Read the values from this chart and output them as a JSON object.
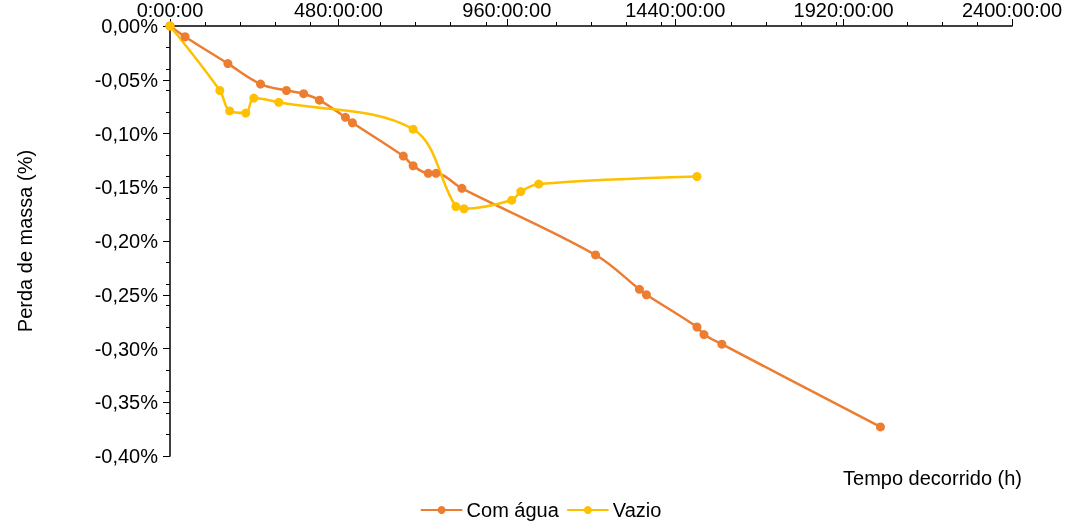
{
  "chart_data": {
    "type": "line",
    "xlabel": "Tempo decorrido (h)",
    "ylabel": "Perda de massa (%)",
    "xlim": [
      0,
      2400
    ],
    "xticks": [
      {
        "value": 0,
        "label": "0:00:00"
      },
      {
        "value": 480,
        "label": "480:00:00"
      },
      {
        "value": 960,
        "label": "960:00:00"
      },
      {
        "value": 1440,
        "label": "1440:00:00"
      },
      {
        "value": 1920,
        "label": "1920:00:00"
      },
      {
        "value": 2400,
        "label": "2400:00:00"
      }
    ],
    "ylim": [
      -0.4,
      0
    ],
    "yticks": [
      {
        "value": 0,
        "label": "0,00%"
      },
      {
        "value": -0.05,
        "label": "-0,05%"
      },
      {
        "value": -0.1,
        "label": "-0,10%"
      },
      {
        "value": -0.15,
        "label": "-0,15%"
      },
      {
        "value": -0.2,
        "label": "-0,20%"
      },
      {
        "value": -0.25,
        "label": "-0,25%"
      },
      {
        "value": -0.3,
        "label": "-0,30%"
      },
      {
        "value": -0.35,
        "label": "-0,35%"
      },
      {
        "value": -0.4,
        "label": "-0,40%"
      }
    ],
    "grid": false,
    "legend": "bottom",
    "marker": "circle",
    "line_style": "solid",
    "series": [
      {
        "name": "Com água",
        "color": "#ed7d31",
        "x": [
          0,
          43,
          165,
          258,
          332,
          381,
          426,
          500,
          520,
          665,
          693,
          736,
          758,
          832,
          1213,
          1338,
          1358,
          1502,
          1522,
          1573,
          2025
        ],
        "values": [
          0,
          -0.01,
          -0.035,
          -0.054,
          -0.06,
          -0.063,
          -0.069,
          -0.085,
          -0.09,
          -0.121,
          -0.13,
          -0.137,
          -0.137,
          -0.151,
          -0.213,
          -0.245,
          -0.25,
          -0.28,
          -0.287,
          -0.296,
          -0.373
        ]
      },
      {
        "name": "Vazio",
        "color": "#ffc000",
        "x": [
          0,
          142,
          170,
          216,
          239,
          310,
          693,
          815,
          838,
          974,
          1000,
          1051,
          1502
        ],
        "values": [
          0,
          -0.06,
          -0.079,
          -0.081,
          -0.067,
          -0.071,
          -0.096,
          -0.168,
          -0.17,
          -0.162,
          -0.154,
          -0.147,
          -0.14
        ]
      }
    ]
  }
}
